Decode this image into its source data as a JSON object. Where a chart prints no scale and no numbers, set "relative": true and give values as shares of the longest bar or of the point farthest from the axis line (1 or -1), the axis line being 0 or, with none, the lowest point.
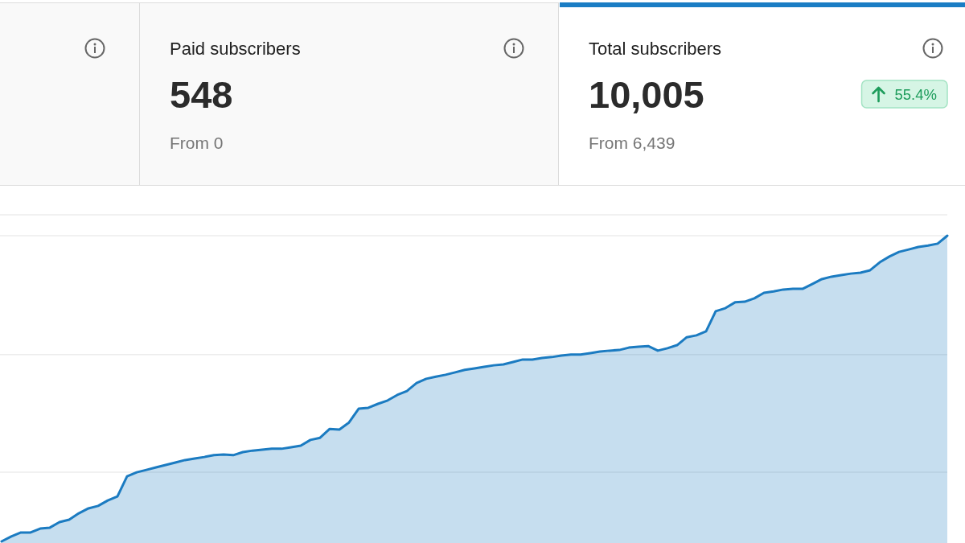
{
  "chart_data": [
    {
      "type": "other",
      "title": "Paid subscribers",
      "annotations": [
        "548",
        "From 0"
      ]
    },
    {
      "type": "other",
      "title": "Total subscribers",
      "annotations": [
        "10,005",
        "55.4%",
        "From 6,439"
      ]
    },
    {
      "type": "area",
      "categories": [
        null,
        null,
        null,
        null,
        null,
        null,
        null,
        null,
        null,
        null,
        null,
        null,
        null,
        null,
        null,
        null,
        null,
        null,
        null,
        null,
        null,
        null,
        null,
        null,
        null,
        null,
        null,
        null,
        null,
        null,
        null,
        null,
        null,
        null,
        null,
        null,
        null,
        null,
        null,
        null,
        null,
        null,
        null,
        null,
        null,
        null,
        null,
        null,
        null,
        null,
        null,
        null,
        null,
        null,
        null,
        null,
        null,
        null,
        null,
        null,
        null,
        null,
        null,
        null,
        null,
        null,
        null,
        null,
        null,
        null,
        null,
        null,
        null,
        null,
        null,
        null,
        null,
        null,
        null,
        null,
        null,
        null,
        null,
        null,
        null,
        null,
        null,
        null,
        null,
        null,
        null,
        null,
        null,
        null,
        null,
        null,
        null,
        null,
        null
      ],
      "values": [
        0,
        0.016,
        0.029,
        0.029,
        0.042,
        0.045,
        0.063,
        0.071,
        0.092,
        0.108,
        0.116,
        0.134,
        0.147,
        0.213,
        0.226,
        0.234,
        0.242,
        0.25,
        0.258,
        0.266,
        0.271,
        0.276,
        0.282,
        0.284,
        0.282,
        0.292,
        0.297,
        0.3,
        0.303,
        0.303,
        0.308,
        0.313,
        0.332,
        0.339,
        0.368,
        0.366,
        0.389,
        0.434,
        0.437,
        0.45,
        0.461,
        0.479,
        0.492,
        0.518,
        0.532,
        0.539,
        0.545,
        0.553,
        0.561,
        0.566,
        0.571,
        0.576,
        0.579,
        0.587,
        0.595,
        0.595,
        0.6,
        0.603,
        0.608,
        0.611,
        0.611,
        0.616,
        0.621,
        0.624,
        0.626,
        0.634,
        0.637,
        0.639,
        0.624,
        0.632,
        0.642,
        0.668,
        0.674,
        0.687,
        0.753,
        0.763,
        0.782,
        0.784,
        0.795,
        0.813,
        0.818,
        0.824,
        0.826,
        0.826,
        0.842,
        0.858,
        0.866,
        0.871,
        0.876,
        0.879,
        0.887,
        0.913,
        0.932,
        0.947,
        0.955,
        0.963,
        0.968,
        0.974,
        1
      ],
      "color": "#1b7bc1",
      "relative": true,
      "ref_lines": [
        {
          "axis": "y",
          "value": 0.226,
          "color": "#ececec"
        },
        {
          "axis": "y",
          "value": 0.611,
          "color": "#ececec"
        },
        {
          "axis": "y",
          "value": 1,
          "color": "#ececec"
        }
      ]
    }
  ]
}
